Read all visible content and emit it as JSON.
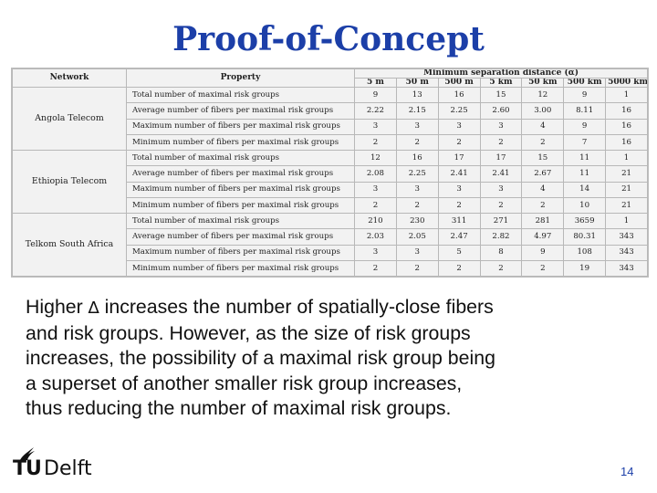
{
  "title": "Proof-of-Concept",
  "table": {
    "header_network": "Network",
    "header_property": "Property",
    "header_group": "Minimum separation distance (α)",
    "distances": [
      "5 m",
      "50 m",
      "500 m",
      "5 km",
      "50 km",
      "500 km",
      "5000 km"
    ],
    "networks": [
      {
        "name": "Angola Telecom",
        "rows": [
          {
            "property": "Total number of maximal risk groups",
            "values": [
              "9",
              "13",
              "16",
              "15",
              "12",
              "9",
              "1"
            ]
          },
          {
            "property": "Average number of fibers per maximal risk groups",
            "values": [
              "2.22",
              "2.15",
              "2.25",
              "2.60",
              "3.00",
              "8.11",
              "16"
            ]
          },
          {
            "property": "Maximum number of fibers per maximal risk groups",
            "values": [
              "3",
              "3",
              "3",
              "3",
              "4",
              "9",
              "16"
            ]
          },
          {
            "property": "Minimum number of fibers per maximal risk groups",
            "values": [
              "2",
              "2",
              "2",
              "2",
              "2",
              "7",
              "16"
            ]
          }
        ]
      },
      {
        "name": "Ethiopia Telecom",
        "rows": [
          {
            "property": "Total number of maximal risk groups",
            "values": [
              "12",
              "16",
              "17",
              "17",
              "15",
              "11",
              "1"
            ]
          },
          {
            "property": "Average number of fibers per maximal risk groups",
            "values": [
              "2.08",
              "2.25",
              "2.41",
              "2.41",
              "2.67",
              "11",
              "21"
            ]
          },
          {
            "property": "Maximum number of fibers per maximal risk groups",
            "values": [
              "3",
              "3",
              "3",
              "3",
              "4",
              "14",
              "21"
            ]
          },
          {
            "property": "Minimum number of fibers per maximal risk groups",
            "values": [
              "2",
              "2",
              "2",
              "2",
              "2",
              "10",
              "21"
            ]
          }
        ]
      },
      {
        "name": "Telkom South Africa",
        "rows": [
          {
            "property": "Total number of maximal risk groups",
            "values": [
              "210",
              "230",
              "311",
              "271",
              "281",
              "3659",
              "1"
            ]
          },
          {
            "property": "Average number of fibers per maximal risk groups",
            "values": [
              "2.03",
              "2.05",
              "2.47",
              "2.82",
              "4.97",
              "80.31",
              "343"
            ]
          },
          {
            "property": "Maximum number of fibers per maximal risk groups",
            "values": [
              "3",
              "3",
              "5",
              "8",
              "9",
              "108",
              "343"
            ]
          },
          {
            "property": "Minimum number of fibers per maximal risk groups",
            "values": [
              "2",
              "2",
              "2",
              "2",
              "2",
              "19",
              "343"
            ]
          }
        ]
      }
    ]
  },
  "body_before": "Higher ",
  "body_delta": "∆",
  "body_line1_rest": " increases the number of spatially-close fibers",
  "body_lines": [
    "and risk groups. However, as the size of risk groups",
    "increases, the possibility of a maximal risk group being",
    "a superset of another smaller risk group increases,",
    "thus reducing the number of maximal risk groups."
  ],
  "logo_tu": "TU",
  "logo_delft": "Delft",
  "page_number": "14"
}
